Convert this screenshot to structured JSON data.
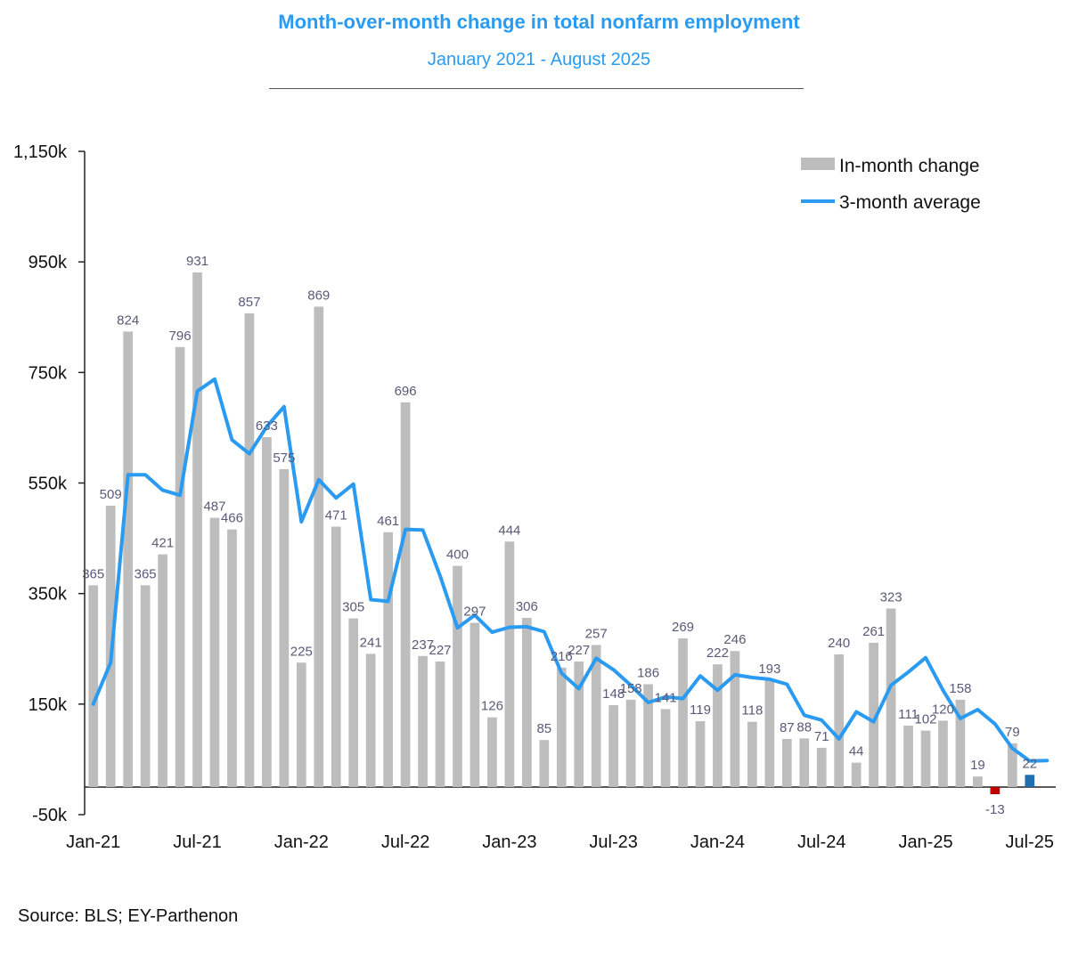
{
  "header": {
    "title": "Month-over-month change in total nonfarm employment",
    "subtitle": "January 2021 - August 2025"
  },
  "footer": {
    "source": "Source: BLS; EY-Parthenon"
  },
  "colors": {
    "bar": "#bdbdbd",
    "line": "#2a9bf0",
    "negative_bar": "#c00000",
    "latest_bar": "#1f6fb2",
    "title": "#2a9bf0"
  },
  "chart_data": {
    "type": "bar",
    "title": "Month-over-month change in total nonfarm employment",
    "subtitle": "January 2021 - August 2025",
    "xlabel": "",
    "ylabel": "",
    "ylim": [
      -50,
      1150
    ],
    "y_ticks": [
      {
        "value": -50,
        "label": "-50k"
      },
      {
        "value": 150,
        "label": "150k"
      },
      {
        "value": 350,
        "label": "350k"
      },
      {
        "value": 550,
        "label": "550k"
      },
      {
        "value": 750,
        "label": "750k"
      },
      {
        "value": 950,
        "label": "950k"
      },
      {
        "value": 1150,
        "label": "1,150k"
      }
    ],
    "x_ticks": [
      {
        "index": 0,
        "label": "Jan-21"
      },
      {
        "index": 6,
        "label": "Jul-21"
      },
      {
        "index": 12,
        "label": "Jan-22"
      },
      {
        "index": 18,
        "label": "Jul-22"
      },
      {
        "index": 24,
        "label": "Jan-23"
      },
      {
        "index": 30,
        "label": "Jul-23"
      },
      {
        "index": 36,
        "label": "Jan-24"
      },
      {
        "index": 42,
        "label": "Jul-24"
      },
      {
        "index": 48,
        "label": "Jan-25"
      },
      {
        "index": 54,
        "label": "Jul-25"
      }
    ],
    "grid": false,
    "legend_position": "top-right",
    "categories": [
      "Jan-21",
      "Feb-21",
      "Mar-21",
      "Apr-21",
      "May-21",
      "Jun-21",
      "Jul-21",
      "Aug-21",
      "Sep-21",
      "Oct-21",
      "Nov-21",
      "Dec-21",
      "Jan-22",
      "Feb-22",
      "Mar-22",
      "Apr-22",
      "May-22",
      "Jun-22",
      "Jul-22",
      "Aug-22",
      "Sep-22",
      "Oct-22",
      "Nov-22",
      "Dec-22",
      "Jan-23",
      "Feb-23",
      "Mar-23",
      "Apr-23",
      "May-23",
      "Jun-23",
      "Jul-23",
      "Aug-23",
      "Sep-23",
      "Oct-23",
      "Nov-23",
      "Dec-23",
      "Jan-24",
      "Feb-24",
      "Mar-24",
      "Apr-24",
      "May-24",
      "Jun-24",
      "Jul-24",
      "Aug-24",
      "Sep-24",
      "Oct-24",
      "Nov-24",
      "Dec-24",
      "Jan-25",
      "Feb-25",
      "Mar-25",
      "Apr-25",
      "May-25",
      "Jun-25",
      "Jul-25",
      "Aug-25"
    ],
    "series": [
      {
        "name": "In-month change",
        "type": "bar",
        "values": [
          365,
          509,
          824,
          365,
          421,
          796,
          931,
          487,
          466,
          857,
          633,
          575,
          225,
          869,
          471,
          305,
          241,
          461,
          696,
          237,
          227,
          400,
          297,
          126,
          444,
          306,
          85,
          216,
          227,
          257,
          148,
          158,
          186,
          141,
          269,
          119,
          222,
          246,
          118,
          193,
          87,
          88,
          71,
          240,
          44,
          261,
          323,
          111,
          102,
          120,
          158,
          19,
          -13,
          79,
          22,
          null
        ],
        "labels": [
          "365",
          "509",
          "824",
          "365",
          "421",
          "796",
          "931",
          "487",
          "466",
          "857",
          "633",
          "575",
          "225",
          "869",
          "471",
          "305",
          "241",
          "461",
          "696",
          "237",
          "227",
          "400",
          "297",
          "126",
          "444",
          "306",
          "85",
          "216",
          "227",
          "257",
          "148",
          "158",
          "186",
          "141",
          "269",
          "119",
          "222",
          "246",
          "118",
          "193",
          "87",
          "88",
          "71",
          "240",
          "44",
          "261",
          "323",
          "111",
          "102",
          "120",
          "158",
          "19",
          "-13",
          "79",
          "22",
          ""
        ]
      },
      {
        "name": "3-month average",
        "type": "line",
        "values": [
          150,
          225,
          565,
          565,
          537,
          528,
          716,
          738,
          628,
          603,
          652,
          688,
          480,
          556,
          523,
          548,
          339,
          336,
          466,
          465,
          382,
          288,
          311,
          280,
          289,
          290,
          281,
          206,
          178,
          233,
          212,
          184,
          153,
          163,
          160,
          201,
          175,
          203,
          198,
          195,
          186,
          130,
          121,
          87,
          136,
          118,
          184,
          208,
          234,
          175,
          124,
          140,
          114,
          70,
          47,
          48
        ]
      }
    ]
  }
}
